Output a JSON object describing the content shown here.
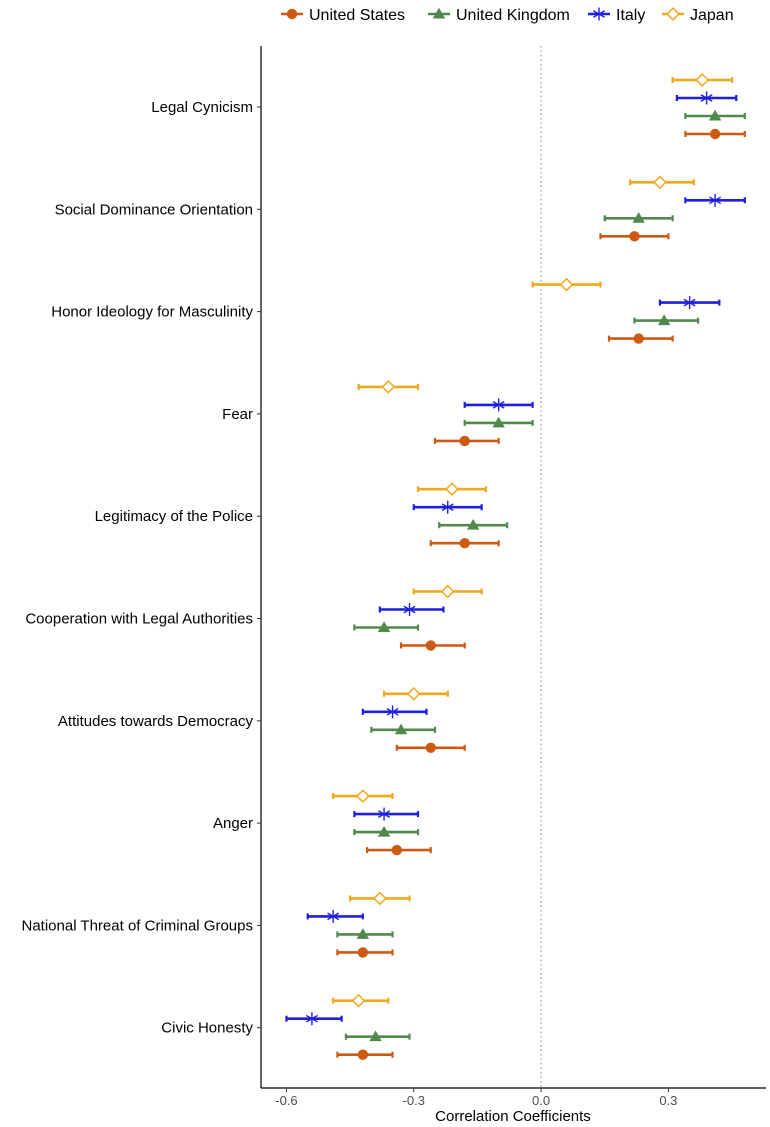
{
  "chart_data": {
    "type": "scatter",
    "subtype": "forest-plot",
    "title": "",
    "xlabel": "Correlation Coefficients",
    "ylabel": "",
    "xlim": [
      -0.66,
      0.53
    ],
    "xticks": [
      -0.6,
      -0.3,
      0.0,
      0.3
    ],
    "xtick_labels": [
      "-0.6",
      "-0.3",
      "0.0",
      "0.3"
    ],
    "reference_line": 0.0,
    "legend_position": "top",
    "categories": [
      "Legal Cynicism",
      "Social Dominance Orientation",
      "Honor Ideology for Masculinity",
      "Fear",
      "Legitimacy of the Police",
      "Cooperation with Legal Authorities",
      "Attitudes towards Democracy",
      "Anger",
      "National Threat of Criminal Groups",
      "Civic Honesty"
    ],
    "series": [
      {
        "name": "Japan",
        "color": "#F2A81D",
        "marker": "open-diamond",
        "estimates": [
          0.38,
          0.28,
          0.06,
          -0.36,
          -0.21,
          -0.22,
          -0.3,
          -0.42,
          -0.38,
          -0.43
        ],
        "ci_low": [
          0.31,
          0.21,
          -0.02,
          -0.43,
          -0.29,
          -0.3,
          -0.37,
          -0.49,
          -0.45,
          -0.49
        ],
        "ci_high": [
          0.45,
          0.36,
          0.14,
          -0.29,
          -0.13,
          -0.14,
          -0.22,
          -0.35,
          -0.31,
          -0.36
        ]
      },
      {
        "name": "Italy",
        "color": "#1F1FE0",
        "marker": "asterisk",
        "estimates": [
          0.39,
          0.41,
          0.35,
          -0.1,
          -0.22,
          -0.31,
          -0.35,
          -0.37,
          -0.49,
          -0.54
        ],
        "ci_low": [
          0.32,
          0.34,
          0.28,
          -0.18,
          -0.3,
          -0.38,
          -0.42,
          -0.44,
          -0.55,
          -0.6
        ],
        "ci_high": [
          0.46,
          0.48,
          0.42,
          -0.02,
          -0.14,
          -0.23,
          -0.27,
          -0.29,
          -0.42,
          -0.47
        ]
      },
      {
        "name": "United Kingdom",
        "color": "#4F8A4B",
        "marker": "filled-triangle",
        "estimates": [
          0.41,
          0.23,
          0.29,
          -0.1,
          -0.16,
          -0.37,
          -0.33,
          -0.37,
          -0.42,
          -0.39
        ],
        "ci_low": [
          0.34,
          0.15,
          0.22,
          -0.18,
          -0.24,
          -0.44,
          -0.4,
          -0.44,
          -0.48,
          -0.46
        ],
        "ci_high": [
          0.48,
          0.31,
          0.37,
          -0.02,
          -0.08,
          -0.29,
          -0.25,
          -0.29,
          -0.35,
          -0.31
        ]
      },
      {
        "name": "United States",
        "color": "#CC5A12",
        "marker": "filled-circle",
        "estimates": [
          0.41,
          0.22,
          0.23,
          -0.18,
          -0.18,
          -0.26,
          -0.26,
          -0.34,
          -0.42,
          -0.42
        ],
        "ci_low": [
          0.34,
          0.14,
          0.16,
          -0.25,
          -0.26,
          -0.33,
          -0.34,
          -0.41,
          -0.48,
          -0.48
        ],
        "ci_high": [
          0.48,
          0.3,
          0.31,
          -0.1,
          -0.1,
          -0.18,
          -0.18,
          -0.26,
          -0.35,
          -0.35
        ]
      }
    ],
    "legend": [
      {
        "name": "United States",
        "color": "#CC5A12",
        "marker": "filled-circle"
      },
      {
        "name": "United Kingdom",
        "color": "#4F8A4B",
        "marker": "filled-triangle"
      },
      {
        "name": "Italy",
        "color": "#1F1FE0",
        "marker": "asterisk"
      },
      {
        "name": "Japan",
        "color": "#F2A81D",
        "marker": "open-diamond"
      }
    ]
  }
}
